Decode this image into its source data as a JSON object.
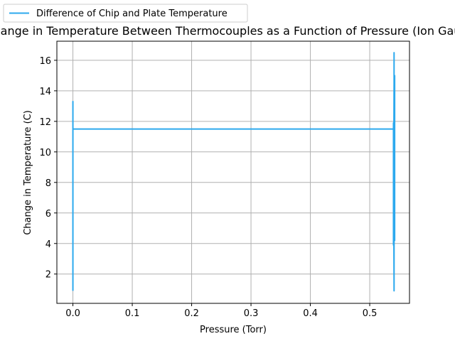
{
  "chart_data": {
    "type": "line",
    "title": "Change in Temperature Between Thermocouples as a Function of Pressure (Ion Gauge)",
    "xlabel": "Pressure (Torr)",
    "ylabel": "Change in Temperature (C)",
    "xlim": [
      -0.027,
      0.567
    ],
    "ylim": [
      0.08,
      17.25
    ],
    "xticks": [
      0.0,
      0.1,
      0.2,
      0.3,
      0.4,
      0.5
    ],
    "xtick_labels": [
      "0.0",
      "0.1",
      "0.2",
      "0.3",
      "0.4",
      "0.5"
    ],
    "yticks": [
      2,
      4,
      6,
      8,
      10,
      12,
      14,
      16
    ],
    "ytick_labels": [
      "2",
      "4",
      "6",
      "8",
      "10",
      "12",
      "14",
      "16"
    ],
    "grid": true,
    "legend_position": "top-left, above plot",
    "series": [
      {
        "name": "Difference of Chip and Plate Temperature",
        "color": "#2ca9ee",
        "x": [
          0.0,
          0.0,
          0.0,
          0.0,
          0.0,
          0.0,
          0.0,
          0.0,
          0.0,
          0.0,
          0.0,
          0.54,
          0.54,
          0.54,
          0.541,
          0.541,
          0.541,
          0.541,
          0.542,
          0.542,
          0.542,
          0.542,
          0.541,
          0.541,
          0.541,
          0.541,
          0.54,
          0.54,
          0.541,
          0.541,
          0.541
        ],
        "y": [
          0.9,
          13.3,
          2.0,
          12.6,
          4.0,
          11.2,
          6.0,
          12.2,
          3.0,
          11.9,
          11.5,
          11.5,
          11.9,
          4.2,
          14.5,
          1.0,
          16.5,
          4.0,
          15.0,
          4.2,
          14.2,
          6.2,
          13.9,
          10.2,
          12.9,
          1.0,
          11.2,
          3.9,
          12.0,
          0.9,
          11.5
        ]
      }
    ]
  }
}
